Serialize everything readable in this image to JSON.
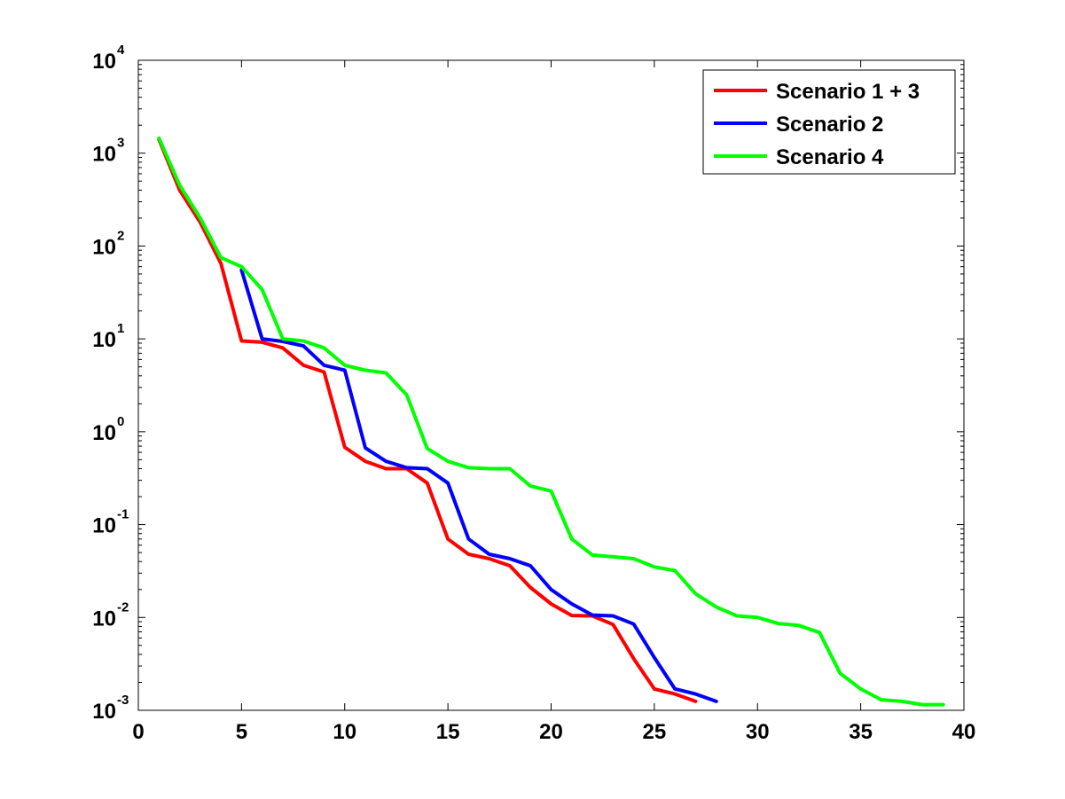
{
  "chart_data": {
    "type": "line",
    "title": "",
    "xlabel": "",
    "ylabel": "",
    "xlim": [
      0,
      40
    ],
    "ylim": [
      0.001,
      10000
    ],
    "yscale": "log",
    "grid": false,
    "legend_position": "top-right",
    "x_ticks": [
      "0",
      "5",
      "10",
      "15",
      "20",
      "25",
      "30",
      "35",
      "40"
    ],
    "y_ticks": [
      {
        "base": "10",
        "exp": "-3"
      },
      {
        "base": "10",
        "exp": "-2"
      },
      {
        "base": "10",
        "exp": "-1"
      },
      {
        "base": "10",
        "exp": "0"
      },
      {
        "base": "10",
        "exp": "1"
      },
      {
        "base": "10",
        "exp": "2"
      },
      {
        "base": "10",
        "exp": "3"
      },
      {
        "base": "10",
        "exp": "4"
      }
    ],
    "series": [
      {
        "name": "Scenario 1 + 3",
        "color": "#ff0000",
        "x": [
          1,
          2,
          3,
          4,
          5,
          6,
          7,
          8,
          9,
          10,
          11,
          12,
          13,
          14,
          15,
          16,
          17,
          18,
          19,
          20,
          21,
          22,
          23,
          24,
          25,
          26,
          27
        ],
        "y": [
          1400,
          400,
          180,
          65,
          9.5,
          9.2,
          8.0,
          5.2,
          4.4,
          0.68,
          0.48,
          0.4,
          0.4,
          0.28,
          0.07,
          0.048,
          0.043,
          0.036,
          0.021,
          0.014,
          0.0105,
          0.0104,
          0.0084,
          0.0036,
          0.0017,
          0.0015,
          0.00125
        ]
      },
      {
        "name": "Scenario 2",
        "color": "#0000ff",
        "x": [
          5,
          6,
          7,
          8,
          9,
          10,
          11,
          12,
          13,
          14,
          15,
          16,
          17,
          18,
          19,
          20,
          21,
          22,
          23,
          24,
          25,
          26,
          27,
          28
        ],
        "y": [
          55,
          10,
          9.4,
          8.4,
          5.2,
          4.6,
          0.67,
          0.48,
          0.41,
          0.4,
          0.28,
          0.07,
          0.048,
          0.043,
          0.036,
          0.02,
          0.014,
          0.0106,
          0.0104,
          0.0085,
          0.0037,
          0.0017,
          0.0015,
          0.00125
        ]
      },
      {
        "name": "Scenario 4",
        "color": "#00ff00",
        "x": [
          1,
          2,
          3,
          4,
          5,
          6,
          7,
          8,
          9,
          10,
          11,
          12,
          13,
          14,
          15,
          16,
          17,
          18,
          19,
          20,
          21,
          22,
          23,
          24,
          25,
          26,
          27,
          28,
          29,
          30,
          31,
          32,
          33,
          34,
          35,
          36,
          37,
          38,
          39
        ],
        "y": [
          1450,
          450,
          200,
          75,
          60,
          34,
          10,
          9.5,
          8.0,
          5.2,
          4.6,
          4.3,
          2.5,
          0.66,
          0.48,
          0.41,
          0.4,
          0.4,
          0.26,
          0.23,
          0.07,
          0.047,
          0.045,
          0.043,
          0.035,
          0.032,
          0.018,
          0.013,
          0.0104,
          0.01,
          0.0086,
          0.0082,
          0.0069,
          0.0025,
          0.0017,
          0.0013,
          0.00125,
          0.00115,
          0.00115
        ]
      }
    ]
  }
}
